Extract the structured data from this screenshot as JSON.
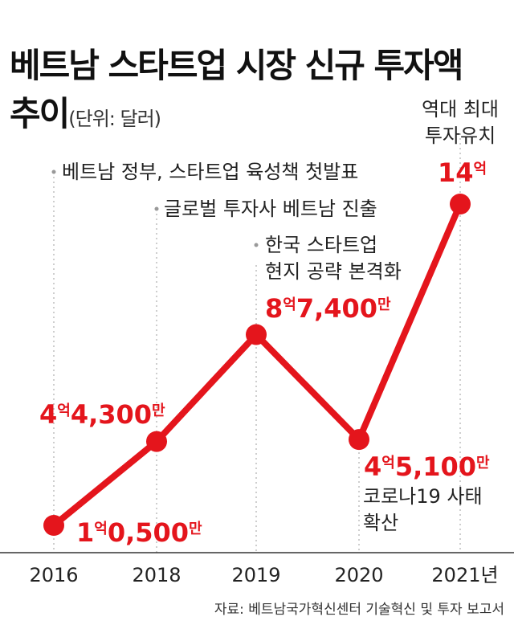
{
  "title_line1": "베트남 스타트업 시장 신규 투자액",
  "title_line2": "추이",
  "unit": "(단위: 달러)",
  "source": "자료: 베트남국가혁신센터 기술혁신 및 투자 보고서",
  "colors": {
    "line": "#e4151c",
    "value_text": "#e4151c",
    "guide": "#bdbdbd",
    "axis": "#333333"
  },
  "chart_data": {
    "type": "line",
    "title": "베트남 스타트업 시장 신규 투자액 추이",
    "unit": "달러",
    "categories": [
      "2016",
      "2018",
      "2019",
      "2020",
      "2021년"
    ],
    "values": [
      10500,
      44300,
      87400,
      45100,
      140000
    ],
    "value_unit": "만 달러",
    "data_labels": [
      {
        "big1": "1",
        "small1": "억",
        "big2": "0,500",
        "small2": "만"
      },
      {
        "big1": "4",
        "small1": "억",
        "big2": "4,300",
        "small2": "만"
      },
      {
        "big1": "8",
        "small1": "억",
        "big2": "7,400",
        "small2": "만"
      },
      {
        "big1": "4",
        "small1": "억",
        "big2": "5,100",
        "small2": "만"
      },
      {
        "big1": "14",
        "small1": "억",
        "big2": "",
        "small2": ""
      }
    ],
    "annotations": [
      {
        "year": "2016",
        "lines": [
          "베트남 정부, 스타트업 육성책 첫발표"
        ]
      },
      {
        "year": "2018",
        "lines": [
          "글로벌 투자사 베트남 진출"
        ]
      },
      {
        "year": "2019",
        "lines": [
          "한국 스타트업",
          "현지 공략 본격화"
        ]
      },
      {
        "year": "2020",
        "lines": [
          "코로나19 사태",
          "확산"
        ]
      },
      {
        "year": "2021년",
        "lines": [
          "역대 최대",
          "투자유치"
        ]
      }
    ],
    "grid": false,
    "legend": "none"
  }
}
